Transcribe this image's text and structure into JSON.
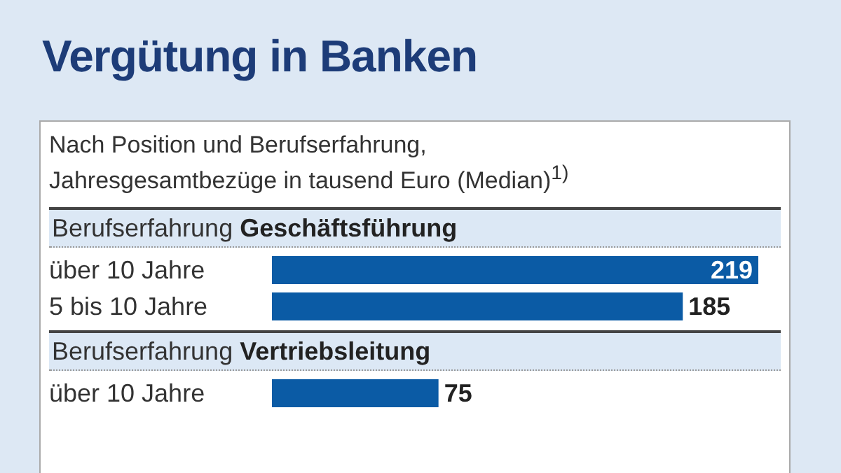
{
  "chart_data": [
    {
      "type": "bar",
      "orientation": "horizontal",
      "title": "Vergütung in Banken",
      "subtitle": "Nach Position und Berufserfahrung,\nJahresgesamtbezüge in tausend Euro (Median)$^{1)}$",
      "ylabel": "Berufserfahrung",
      "annotations": [
        "Geschäftsführung"
      ],
      "categories": [
        "über 10 Jahre",
        "5 bis 10 Jahre"
      ],
      "values": [
        219,
        185
      ],
      "color": "#0b5ba5",
      "data_labels": true,
      "tick_labels": "y"
    },
    {
      "type": "bar",
      "orientation": "horizontal",
      "ylabel": "Berufserfahrung",
      "annotations": [
        "Vertriebsleitung"
      ],
      "categories": [
        "über 10 Jahre"
      ],
      "values": [
        75
      ],
      "color": "#0b5ba5",
      "data_labels": true,
      "tick_labels": "y"
    }
  ]
}
